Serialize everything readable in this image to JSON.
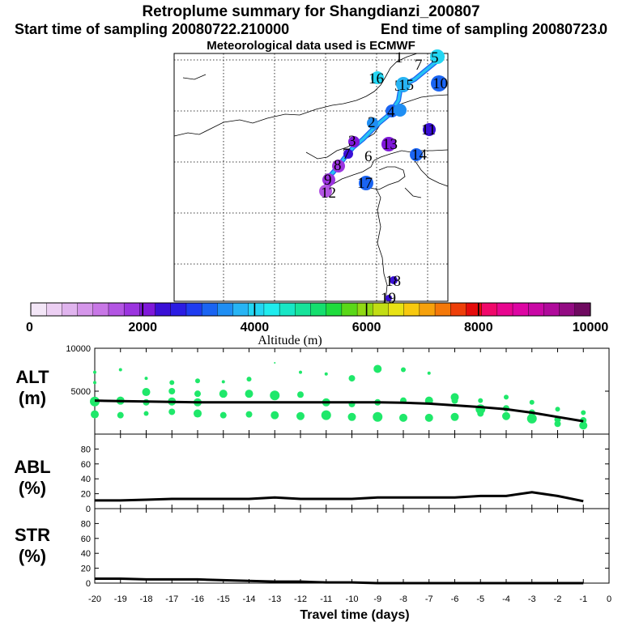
{
  "title": "Retroplume summary for Shangdianzi_200807",
  "start_label": "Start time of sampling 20080722.210000",
  "end_label": "End time of sampling 20080723.",
  "end_suffix": "0",
  "met_label": "Meteorological data used is ECMWF",
  "colorbar": {
    "title": "Altitude (m)",
    "ticks": [
      "0",
      "2000",
      "4000",
      "6000",
      "8000",
      "10000"
    ],
    "colors": [
      "#f3e6f7",
      "#eccff3",
      "#e0b4ee",
      "#d596ea",
      "#c877e6",
      "#b355e3",
      "#9b34df",
      "#7f18d9",
      "#3a10d6",
      "#2b1ce3",
      "#1f3cf0",
      "#1a64f2",
      "#1f8ef3",
      "#27b4f4",
      "#23d6f3",
      "#1fecee",
      "#17e6c5",
      "#16e39a",
      "#14df6e",
      "#1fdc3d",
      "#5ad818",
      "#90d914",
      "#c2dd14",
      "#e8e214",
      "#f7c90f",
      "#f6a10c",
      "#f47809",
      "#ee3f09",
      "#e50b0b",
      "#f0086a",
      "#e8068f",
      "#dd06a3",
      "#c908a5",
      "#b00a9b",
      "#930b83",
      "#6f0a60"
    ]
  },
  "map": {
    "labels": [
      "1",
      "2",
      "3",
      "4",
      "5",
      "6",
      "7",
      "8",
      "9",
      "10",
      "11",
      "12",
      "13",
      "14",
      "15",
      "16",
      "17",
      "18",
      "19"
    ],
    "colors": {
      "track_outer": "#1a64f2",
      "track_inner": "#27c3f3"
    }
  },
  "chart_data": [
    {
      "type": "scatter+line",
      "name": "ALT",
      "ylabel_line1": "ALT",
      "ylabel_line2": "(m)",
      "ylim": [
        0,
        10000
      ],
      "yticks": [
        5000,
        10000
      ],
      "xlim": [
        -20,
        0
      ],
      "median_line": {
        "x": [
          -20,
          -19,
          -18,
          -17,
          -16,
          -15,
          -14,
          -13,
          -12,
          -11,
          -10,
          -9,
          -8,
          -7,
          -6,
          -5,
          -4,
          -3,
          -2,
          -1
        ],
        "y": [
          3900,
          3850,
          3800,
          3750,
          3700,
          3700,
          3700,
          3700,
          3700,
          3700,
          3700,
          3700,
          3650,
          3550,
          3350,
          3150,
          2900,
          2500,
          2000,
          1500
        ]
      },
      "cluster_points": {
        "x": [
          -20,
          -20,
          -20,
          -20,
          -19,
          -19,
          -19,
          -18,
          -18,
          -18,
          -18,
          -17,
          -17,
          -17,
          -17,
          -16,
          -16,
          -16,
          -16,
          -15,
          -15,
          -15,
          -14,
          -14,
          -14,
          -13,
          -13,
          -13,
          -12,
          -12,
          -12,
          -11,
          -11,
          -11,
          -10,
          -10,
          -10,
          -9,
          -9,
          -9,
          -8,
          -8,
          -8,
          -7,
          -7,
          -7,
          -6,
          -6,
          -6,
          -5,
          -5,
          -5,
          -4,
          -4,
          -4,
          -3,
          -3,
          -3,
          -2,
          -2,
          -2,
          -1,
          -1,
          -1
        ],
        "y": [
          7200,
          6000,
          3800,
          2300,
          7500,
          3900,
          2200,
          6500,
          4900,
          3700,
          2400,
          6000,
          5000,
          3800,
          2600,
          6200,
          4700,
          3700,
          2400,
          6100,
          4700,
          2200,
          6400,
          4700,
          2300,
          8300,
          4500,
          2200,
          7200,
          4600,
          2100,
          7000,
          3700,
          2200,
          6500,
          3500,
          2000,
          7600,
          3700,
          2000,
          7500,
          3900,
          1900,
          7100,
          3900,
          1900,
          4300,
          3900,
          2000,
          3900,
          2900,
          2400,
          4300,
          3000,
          2100,
          3700,
          2500,
          1800,
          2900,
          1700,
          1200,
          2500,
          1600,
          1000
        ],
        "sizes": [
          2,
          2,
          6,
          5,
          2,
          5,
          4,
          2,
          5,
          4,
          3,
          3,
          4,
          5,
          4,
          3,
          4,
          5,
          5,
          2,
          5,
          4,
          3,
          5,
          4,
          1,
          6,
          5,
          2,
          4,
          5,
          2,
          5,
          6,
          4,
          4,
          5,
          5,
          4,
          6,
          3,
          4,
          5,
          2,
          5,
          5,
          5,
          4,
          5,
          3,
          6,
          4,
          3,
          4,
          5,
          3,
          4,
          6,
          3,
          4,
          4,
          3,
          4,
          5
        ],
        "color": "#1fe86a"
      }
    },
    {
      "type": "line",
      "name": "ABL",
      "ylabel_line1": "ABL",
      "ylabel_line2": "(%)",
      "ylim": [
        0,
        100
      ],
      "yticks": [
        0,
        20,
        40,
        60,
        80
      ],
      "x": [
        -20,
        -19,
        -18,
        -17,
        -16,
        -15,
        -14,
        -13,
        -12,
        -11,
        -10,
        -9,
        -8,
        -7,
        -6,
        -5,
        -4,
        -3,
        -2,
        -1
      ],
      "y": [
        11,
        11,
        12,
        13,
        13,
        13,
        13,
        15,
        13,
        13,
        13,
        15,
        15,
        15,
        15,
        17,
        17,
        22,
        17,
        10
      ]
    },
    {
      "type": "line",
      "name": "STR",
      "ylabel_line1": "STR",
      "ylabel_line2": "(%)",
      "ylim": [
        0,
        100
      ],
      "yticks": [
        0,
        20,
        40,
        60,
        80
      ],
      "x": [
        -20,
        -19,
        -18,
        -17,
        -16,
        -15,
        -14,
        -13,
        -12,
        -11,
        -10,
        -9,
        -8,
        -7,
        -6,
        -5,
        -4,
        -3,
        -2,
        -1
      ],
      "y": [
        6,
        6,
        5,
        5,
        5,
        4,
        3,
        2,
        2,
        1,
        1,
        0,
        0,
        0,
        0,
        0,
        0,
        0,
        0,
        0
      ],
      "xlabel": "Travel time (days)",
      "xticks": [
        "-20",
        "-19",
        "-18",
        "-17",
        "-16",
        "-15",
        "-14",
        "-13",
        "-12",
        "-11",
        "-10",
        "-9",
        "-8",
        "-7",
        "-6",
        "-5",
        "-4",
        "-3",
        "-2",
        "-1",
        "0"
      ]
    }
  ]
}
